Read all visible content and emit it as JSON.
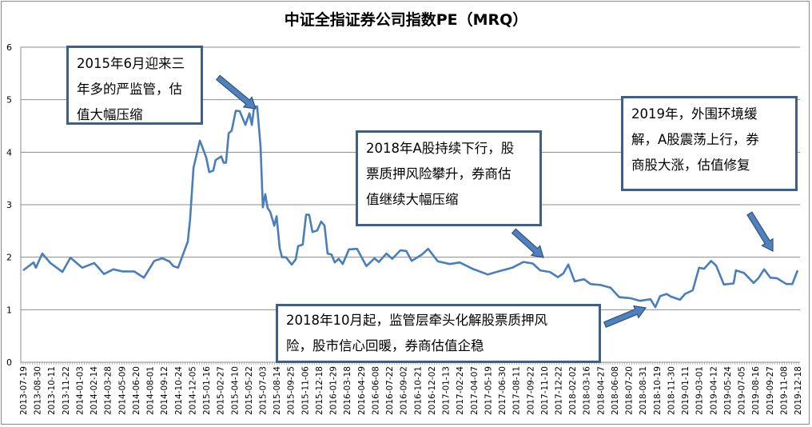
{
  "chart_data": {
    "type": "line",
    "title": "中证全指证券公司指数PE（MRQ）",
    "xlabel": "",
    "ylabel": "",
    "ylim": [
      0,
      6
    ],
    "yticks": [
      "0",
      "1",
      "2",
      "3",
      "4",
      "5",
      "6"
    ],
    "grid": true,
    "legend": "none",
    "line_color": "#4a7ebb",
    "xtick_labels": [
      "2013-07-19",
      "2013-08-30",
      "2013-10-11",
      "2013-11-22",
      "2014-01-03",
      "2014-02-14",
      "2014-03-28",
      "2014-05-09",
      "2014-06-20",
      "2014-08-01",
      "2014-09-12",
      "2014-10-24",
      "2014-12-05",
      "2015-01-16",
      "2015-02-27",
      "2015-04-10",
      "2015-05-22",
      "2015-07-03",
      "2015-08-14",
      "2015-09-25",
      "2015-11-06",
      "2015-12-18",
      "2016-01-29",
      "2016-03-18",
      "2016-04-29",
      "2016-06-08",
      "2016-07-22",
      "2016-09-02",
      "2016-10-21",
      "2016-12-02",
      "2017-01-13",
      "2017-02-24",
      "2017-04-07",
      "2017-05-19",
      "2017-06-30",
      "2017-08-11",
      "2017-09-22",
      "2017-11-10",
      "2017-12-22",
      "2018-02-02",
      "2018-03-16",
      "2018-04-27",
      "2018-06-08",
      "2018-07-20",
      "2018-08-31",
      "2018-10-19",
      "2018-11-30",
      "2019-01-11",
      "2019-03-01",
      "2019-04-12",
      "2019-05-24",
      "2019-07-05",
      "2019-08-16",
      "2019-09-27",
      "2019-11-08",
      "2019-12-18"
    ],
    "points": [
      [
        "2013-07-19",
        1.75
      ],
      [
        "2013-08-19",
        1.9
      ],
      [
        "2013-08-26",
        1.8
      ],
      [
        "2013-09-14",
        2.07
      ],
      [
        "2013-10-08",
        1.89
      ],
      [
        "2013-11-13",
        1.72
      ],
      [
        "2013-12-07",
        1.99
      ],
      [
        "2014-01-11",
        1.8
      ],
      [
        "2014-02-16",
        1.89
      ],
      [
        "2014-03-17",
        1.68
      ],
      [
        "2014-04-14",
        1.77
      ],
      [
        "2014-05-11",
        1.73
      ],
      [
        "2014-06-15",
        1.73
      ],
      [
        "2014-07-14",
        1.61
      ],
      [
        "2014-08-14",
        1.93
      ],
      [
        "2014-09-07",
        1.98
      ],
      [
        "2014-09-28",
        1.92
      ],
      [
        "2014-10-10",
        1.83
      ],
      [
        "2014-10-24",
        1.8
      ],
      [
        "2014-11-22",
        2.3
      ],
      [
        "2014-11-29",
        2.73
      ],
      [
        "2014-12-09",
        3.7
      ],
      [
        "2014-12-28",
        4.22
      ],
      [
        "2015-01-16",
        3.9
      ],
      [
        "2015-01-25",
        3.62
      ],
      [
        "2015-02-06",
        3.65
      ],
      [
        "2015-02-13",
        3.85
      ],
      [
        "2015-03-02",
        3.92
      ],
      [
        "2015-03-09",
        3.8
      ],
      [
        "2015-03-16",
        3.8
      ],
      [
        "2015-03-24",
        4.36
      ],
      [
        "2015-04-02",
        4.41
      ],
      [
        "2015-04-14",
        4.79
      ],
      [
        "2015-04-26",
        4.78
      ],
      [
        "2015-05-13",
        4.52
      ],
      [
        "2015-05-25",
        4.74
      ],
      [
        "2015-06-01",
        4.52
      ],
      [
        "2015-06-08",
        4.87
      ],
      [
        "2015-06-17",
        4.87
      ],
      [
        "2015-06-27",
        4.11
      ],
      [
        "2015-07-04",
        2.95
      ],
      [
        "2015-07-11",
        3.2
      ],
      [
        "2015-07-18",
        2.94
      ],
      [
        "2015-07-26",
        2.86
      ],
      [
        "2015-08-07",
        2.6
      ],
      [
        "2015-08-14",
        2.78
      ],
      [
        "2015-08-23",
        2.18
      ],
      [
        "2015-08-30",
        2.0
      ],
      [
        "2015-09-11",
        2.0
      ],
      [
        "2015-09-28",
        1.86
      ],
      [
        "2015-10-10",
        1.96
      ],
      [
        "2015-10-17",
        2.21
      ],
      [
        "2015-10-31",
        2.24
      ],
      [
        "2015-11-10",
        2.81
      ],
      [
        "2015-11-19",
        2.81
      ],
      [
        "2015-11-29",
        2.48
      ],
      [
        "2015-12-13",
        2.51
      ],
      [
        "2015-12-25",
        2.68
      ],
      [
        "2016-01-04",
        2.6
      ],
      [
        "2016-01-13",
        2.07
      ],
      [
        "2016-01-25",
        2.05
      ],
      [
        "2016-02-04",
        1.9
      ],
      [
        "2016-02-18",
        1.97
      ],
      [
        "2016-03-03",
        1.87
      ],
      [
        "2016-03-24",
        2.15
      ],
      [
        "2016-04-17",
        2.16
      ],
      [
        "2016-05-14",
        1.83
      ],
      [
        "2016-06-06",
        1.98
      ],
      [
        "2016-06-19",
        1.91
      ],
      [
        "2016-07-13",
        2.07
      ],
      [
        "2016-07-31",
        1.97
      ],
      [
        "2016-08-24",
        2.13
      ],
      [
        "2016-09-12",
        2.12
      ],
      [
        "2016-10-01",
        1.93
      ],
      [
        "2016-11-03",
        2.05
      ],
      [
        "2016-11-22",
        2.16
      ],
      [
        "2016-12-21",
        1.92
      ],
      [
        "2017-01-26",
        1.87
      ],
      [
        "2017-02-24",
        1.9
      ],
      [
        "2017-04-03",
        1.78
      ],
      [
        "2017-05-19",
        1.67
      ],
      [
        "2017-06-20",
        1.73
      ],
      [
        "2017-07-31",
        1.8
      ],
      [
        "2017-09-02",
        1.91
      ],
      [
        "2017-10-01",
        1.88
      ],
      [
        "2017-10-27",
        1.75
      ],
      [
        "2017-11-27",
        1.72
      ],
      [
        "2017-12-21",
        1.62
      ],
      [
        "2018-01-06",
        1.69
      ],
      [
        "2018-01-21",
        1.86
      ],
      [
        "2018-02-09",
        1.54
      ],
      [
        "2018-03-09",
        1.58
      ],
      [
        "2018-03-28",
        1.49
      ],
      [
        "2018-04-28",
        1.47
      ],
      [
        "2018-05-27",
        1.42
      ],
      [
        "2018-06-22",
        1.24
      ],
      [
        "2018-07-25",
        1.22
      ],
      [
        "2018-08-23",
        1.17
      ],
      [
        "2018-09-27",
        1.2
      ],
      [
        "2018-10-14",
        1.05
      ],
      [
        "2018-10-29",
        1.26
      ],
      [
        "2018-11-17",
        1.3
      ],
      [
        "2018-11-30",
        1.25
      ],
      [
        "2018-12-27",
        1.19
      ],
      [
        "2019-01-11",
        1.3
      ],
      [
        "2019-02-07",
        1.37
      ],
      [
        "2019-03-01",
        1.8
      ],
      [
        "2019-03-16",
        1.78
      ],
      [
        "2019-04-06",
        1.93
      ],
      [
        "2019-04-21",
        1.84
      ],
      [
        "2019-05-14",
        1.48
      ],
      [
        "2019-06-12",
        1.5
      ],
      [
        "2019-06-19",
        1.75
      ],
      [
        "2019-07-13",
        1.7
      ],
      [
        "2019-08-11",
        1.51
      ],
      [
        "2019-08-25",
        1.6
      ],
      [
        "2019-09-11",
        1.77
      ],
      [
        "2019-09-30",
        1.61
      ],
      [
        "2019-10-19",
        1.6
      ],
      [
        "2019-11-16",
        1.49
      ],
      [
        "2019-12-03",
        1.49
      ],
      [
        "2019-12-18",
        1.75
      ]
    ],
    "annotations": [
      {
        "lines": [
          "2015年6月迎来三",
          "年多的严监管，估",
          "值大幅压缩"
        ]
      },
      {
        "lines": [
          "2018年A股持续下行，股",
          "票质押风险攀升，券商估",
          "值继续大幅压缩"
        ]
      },
      {
        "lines": [
          "2019年，外围环境缓",
          "解，A股震荡上行，券",
          "商股大涨，估值修复"
        ]
      },
      {
        "lines": [
          "2018年10月起，监管层牵头化解股票质押风",
          "险，股市信心回暖，券商估值企稳"
        ]
      }
    ],
    "arrow_color": "#4f81bd"
  }
}
